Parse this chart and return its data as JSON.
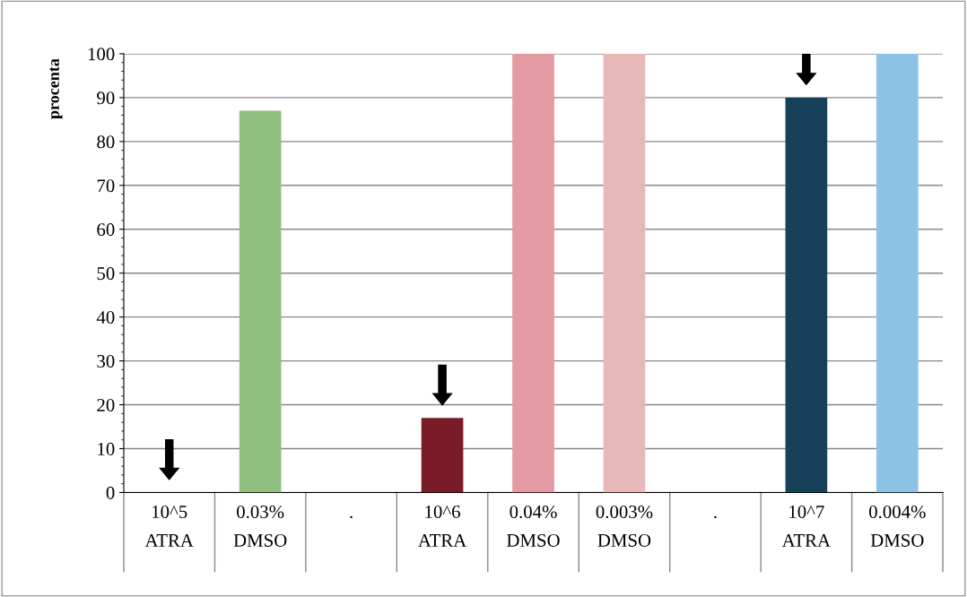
{
  "chart_data": {
    "type": "bar",
    "ylabel": "procenta",
    "categories": [
      "10^5\nATRA",
      "0.03%\nDMSO",
      ".",
      "10^6\nATRA",
      "0.04%\nDMSO",
      "0.003%\nDMSO",
      ".",
      "10^7\nATRA",
      "0.004%\nDMSO"
    ],
    "values": [
      0,
      87,
      null,
      17,
      100,
      100,
      null,
      90,
      100
    ],
    "colors": [
      "#7a1c28",
      "#8fc080",
      "#888888",
      "#7a1c28",
      "#e39aa3",
      "#e6b9b8",
      "#888888",
      "#17405a",
      "#8cc3e6"
    ],
    "ylim": [
      0,
      100
    ],
    "yticks": [
      0,
      10,
      20,
      30,
      40,
      50,
      60,
      70,
      80,
      90,
      100
    ],
    "grid": "y",
    "legend": false
  }
}
